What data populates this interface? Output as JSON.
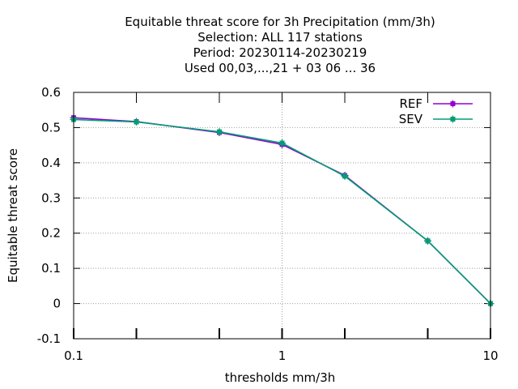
{
  "chart_data": {
    "type": "line",
    "title": [
      "Equitable threat score  for 3h Precipitation (mm/3h)",
      "Selection: ALL    117 stations",
      "Period: 20230114-20230219",
      "Used  00,03,...,21  + 03 06 ... 36"
    ],
    "xlabel": "thresholds mm/3h",
    "ylabel": "Equitable threat score",
    "x_scale": "log",
    "xlim": [
      0.1,
      10
    ],
    "ylim": [
      -0.1,
      0.6
    ],
    "x_ticks": [
      0.1,
      1,
      10
    ],
    "x_tick_labels": [
      "0.1",
      "1",
      "10"
    ],
    "x_minor_ticks": [
      0.2,
      0.5,
      2,
      5
    ],
    "y_ticks": [
      -0.1,
      0,
      0.1,
      0.2,
      0.3,
      0.4,
      0.5,
      0.6
    ],
    "y_tick_labels": [
      "-0.1",
      "0",
      "0.1",
      "0.2",
      "0.3",
      "0.4",
      "0.5",
      "0.6"
    ],
    "grid": true,
    "legend_position": "top-right",
    "x": [
      0.1,
      0.2,
      0.5,
      1,
      2,
      5,
      10
    ],
    "series": [
      {
        "name": "REF",
        "color": "#9400d3",
        "values": [
          0.528,
          0.517,
          0.486,
          0.452,
          0.364,
          0.178,
          0.0
        ]
      },
      {
        "name": "SEV",
        "color": "#009e73",
        "values": [
          0.523,
          0.516,
          0.488,
          0.456,
          0.362,
          0.178,
          0.0
        ]
      }
    ]
  }
}
